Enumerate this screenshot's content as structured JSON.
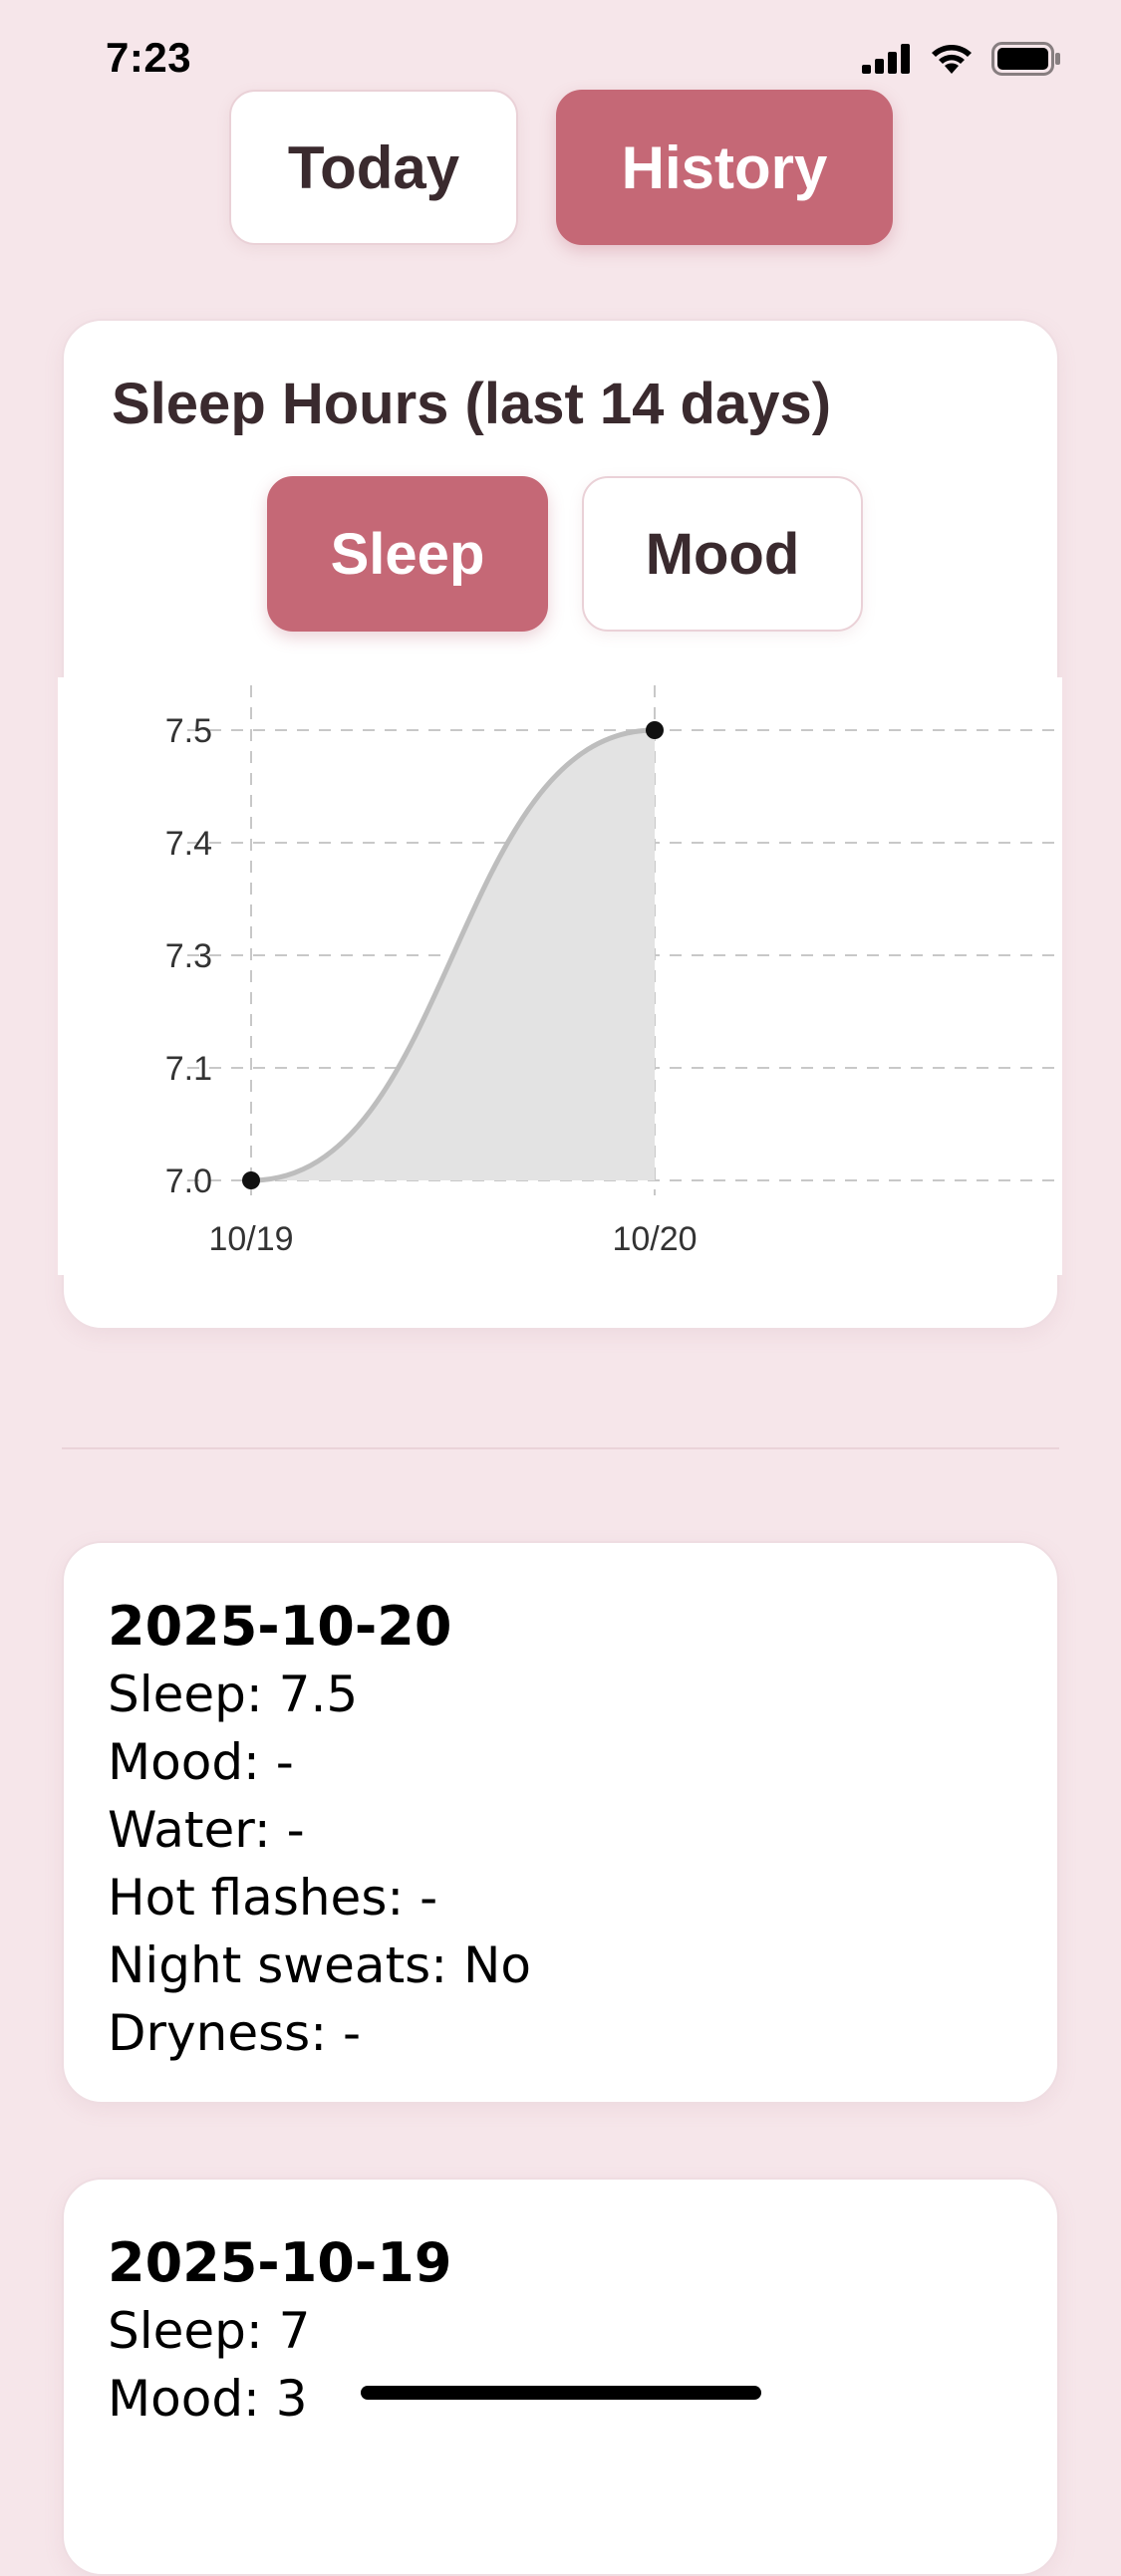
{
  "status_bar": {
    "time": "7:23",
    "icons": [
      "cellular-signal-icon",
      "wifi-icon",
      "battery-icon"
    ]
  },
  "top_tabs": {
    "today_label": "Today",
    "history_label": "History",
    "selected": "History"
  },
  "chart_card": {
    "title": "Sleep Hours (last 14 days)",
    "sleep_label": "Sleep",
    "mood_label": "Mood",
    "selected": "Sleep"
  },
  "chart_data": {
    "type": "area",
    "x": [
      "10/19",
      "10/20"
    ],
    "values": [
      7.0,
      7.5
    ],
    "yticks": [
      7.0,
      7.1,
      7.3,
      7.4,
      7.5
    ],
    "ytick_labels": [
      "7.0",
      "7.1",
      "7.3",
      "7.4",
      "7.5"
    ],
    "ylim": [
      7.0,
      7.5
    ],
    "grid": true,
    "grid_style": "dashed",
    "line_color": "#bdbdbd",
    "fill_color": "#e3e3e3",
    "point_color": "#111111"
  },
  "history": {
    "entries": [
      {
        "date": "2025-10-20",
        "lines": [
          "Sleep: 7.5",
          "Mood: -",
          "Water: -",
          "Hot flashes: -",
          "Night sweats: No",
          "Dryness: -"
        ]
      },
      {
        "date": "2025-10-19",
        "lines": [
          "Sleep: 7",
          "Mood: 3"
        ]
      }
    ]
  },
  "colors": {
    "background": "#f6e6ea",
    "accent": "#c56876",
    "card": "#ffffff",
    "text": "#3a2a2e"
  }
}
